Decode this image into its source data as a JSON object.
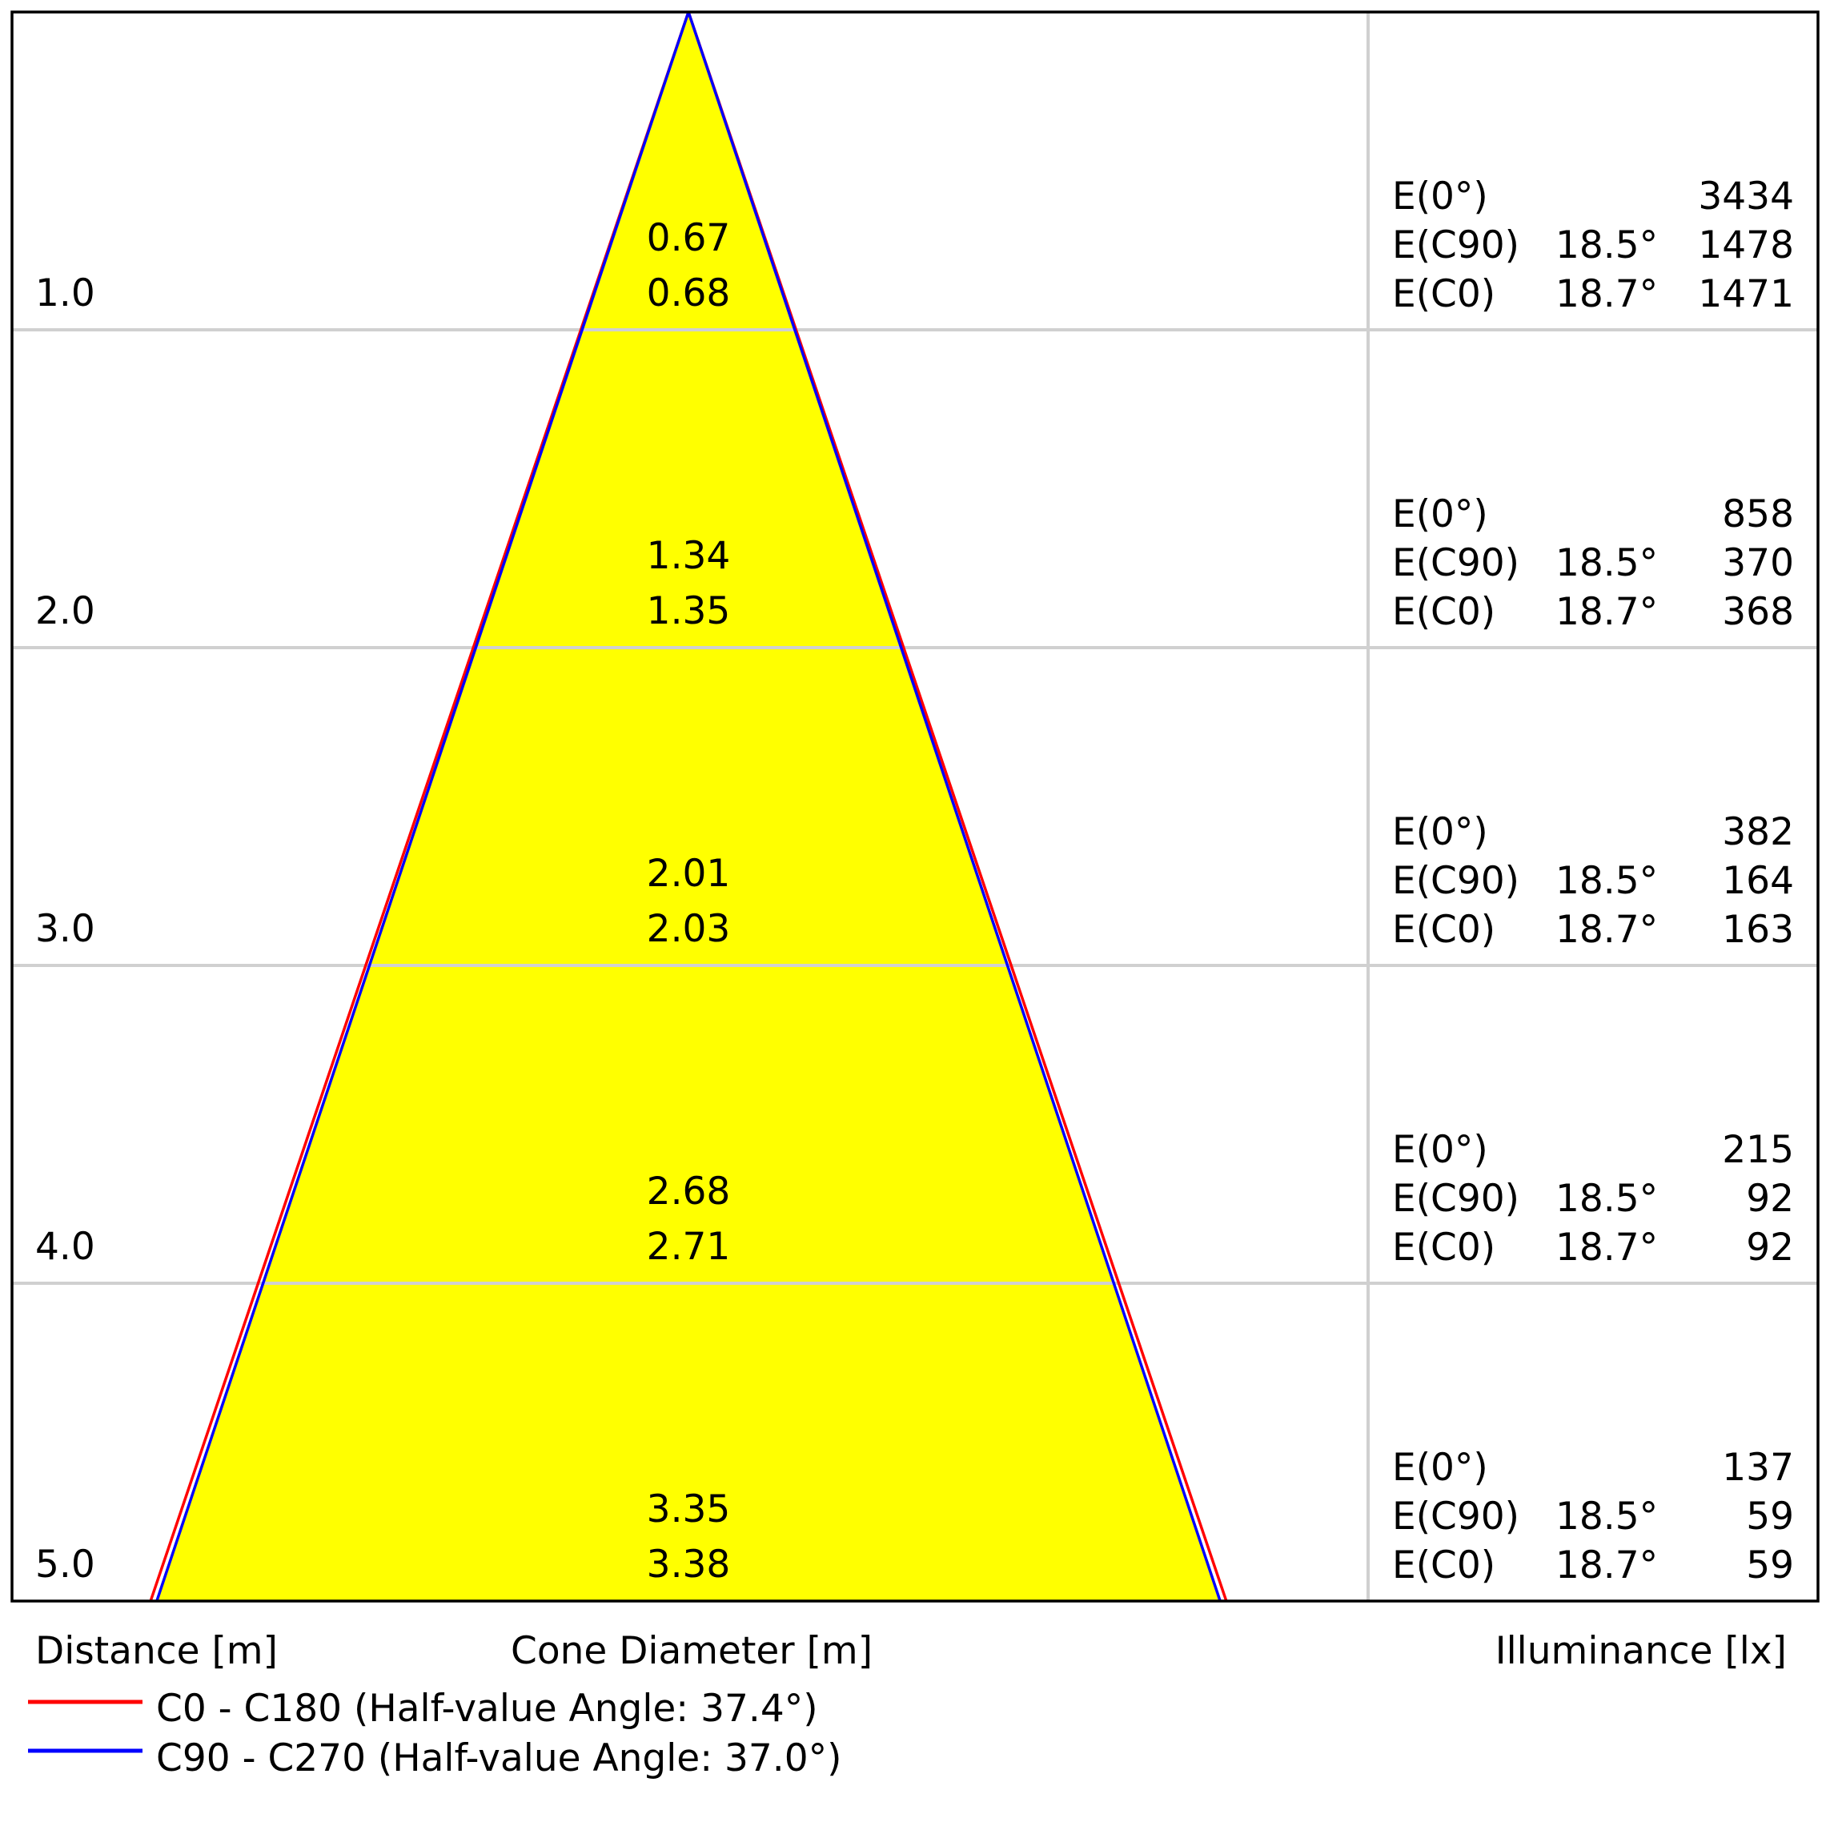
{
  "chart_data": {
    "type": "cone-diagram",
    "xlabel_distance": "Distance [m]",
    "xlabel_cone": "Cone Diameter [m]",
    "xlabel_illuminance": "Illuminance [lx]",
    "colors": {
      "fill": "#ffff00",
      "c0": "#ff0000",
      "c90": "#0000ff",
      "grid": "#d0d0d0"
    },
    "series": [
      {
        "name": "C0 - C180 (Half-value Angle: 37.4°)",
        "half_angle": 37.4,
        "color": "#ff0000"
      },
      {
        "name": "C90 - C270 (Half-value Angle: 37.0°)",
        "half_angle": 37.0,
        "color": "#0000ff"
      }
    ],
    "rows": [
      {
        "distance": "1.0",
        "d1": "0.67",
        "d2": "0.68",
        "e": [
          {
            "label": "E(0°)",
            "angle": "",
            "value": "3434"
          },
          {
            "label": "E(C90)",
            "angle": "18.5°",
            "value": "1478"
          },
          {
            "label": "E(C0)",
            "angle": "18.7°",
            "value": "1471"
          }
        ]
      },
      {
        "distance": "2.0",
        "d1": "1.34",
        "d2": "1.35",
        "e": [
          {
            "label": "E(0°)",
            "angle": "",
            "value": "858"
          },
          {
            "label": "E(C90)",
            "angle": "18.5°",
            "value": "370"
          },
          {
            "label": "E(C0)",
            "angle": "18.7°",
            "value": "368"
          }
        ]
      },
      {
        "distance": "3.0",
        "d1": "2.01",
        "d2": "2.03",
        "e": [
          {
            "label": "E(0°)",
            "angle": "",
            "value": "382"
          },
          {
            "label": "E(C90)",
            "angle": "18.5°",
            "value": "164"
          },
          {
            "label": "E(C0)",
            "angle": "18.7°",
            "value": "163"
          }
        ]
      },
      {
        "distance": "4.0",
        "d1": "2.68",
        "d2": "2.71",
        "e": [
          {
            "label": "E(0°)",
            "angle": "",
            "value": "215"
          },
          {
            "label": "E(C90)",
            "angle": "18.5°",
            "value": "92"
          },
          {
            "label": "E(C0)",
            "angle": "18.7°",
            "value": "92"
          }
        ]
      },
      {
        "distance": "5.0",
        "d1": "3.35",
        "d2": "3.38",
        "e": [
          {
            "label": "E(0°)",
            "angle": "",
            "value": "137"
          },
          {
            "label": "E(C90)",
            "angle": "18.5°",
            "value": "59"
          },
          {
            "label": "E(C0)",
            "angle": "18.7°",
            "value": "59"
          }
        ]
      }
    ]
  }
}
